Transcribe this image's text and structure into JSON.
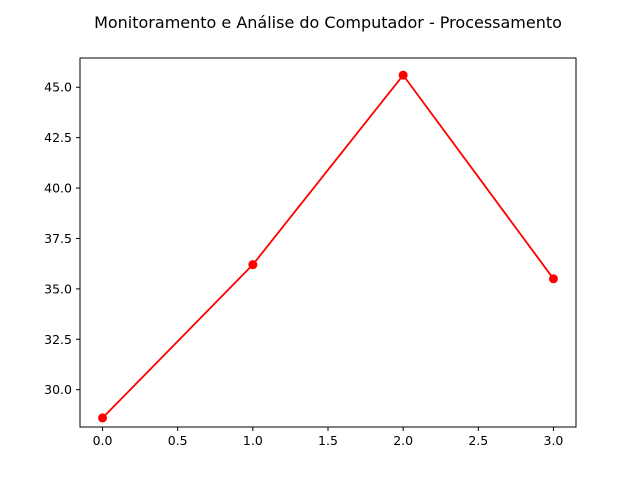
{
  "chart_data": {
    "type": "line",
    "title": "Monitoramento e Análise do Computador - Processamento",
    "xlabel": "",
    "ylabel": "",
    "x": [
      0,
      1,
      2,
      3
    ],
    "series": [
      {
        "values": [
          28.6,
          36.2,
          45.6,
          35.5
        ],
        "color": "#ff0000",
        "marker": "circle"
      }
    ],
    "xlim": [
      -0.15,
      3.15
    ],
    "ylim": [
      28.15,
      46.45
    ],
    "x_ticks": [
      0.0,
      0.5,
      1.0,
      1.5,
      2.0,
      2.5,
      3.0
    ],
    "x_tick_labels": [
      "0.0",
      "0.5",
      "1.0",
      "1.5",
      "2.0",
      "2.5",
      "3.0"
    ],
    "y_ticks": [
      30.0,
      32.5,
      35.0,
      37.5,
      40.0,
      42.5,
      45.0
    ],
    "y_tick_labels": [
      "30.0",
      "32.5",
      "35.0",
      "37.5",
      "40.0",
      "42.5",
      "45.0"
    ],
    "grid": false,
    "legend": "none"
  }
}
